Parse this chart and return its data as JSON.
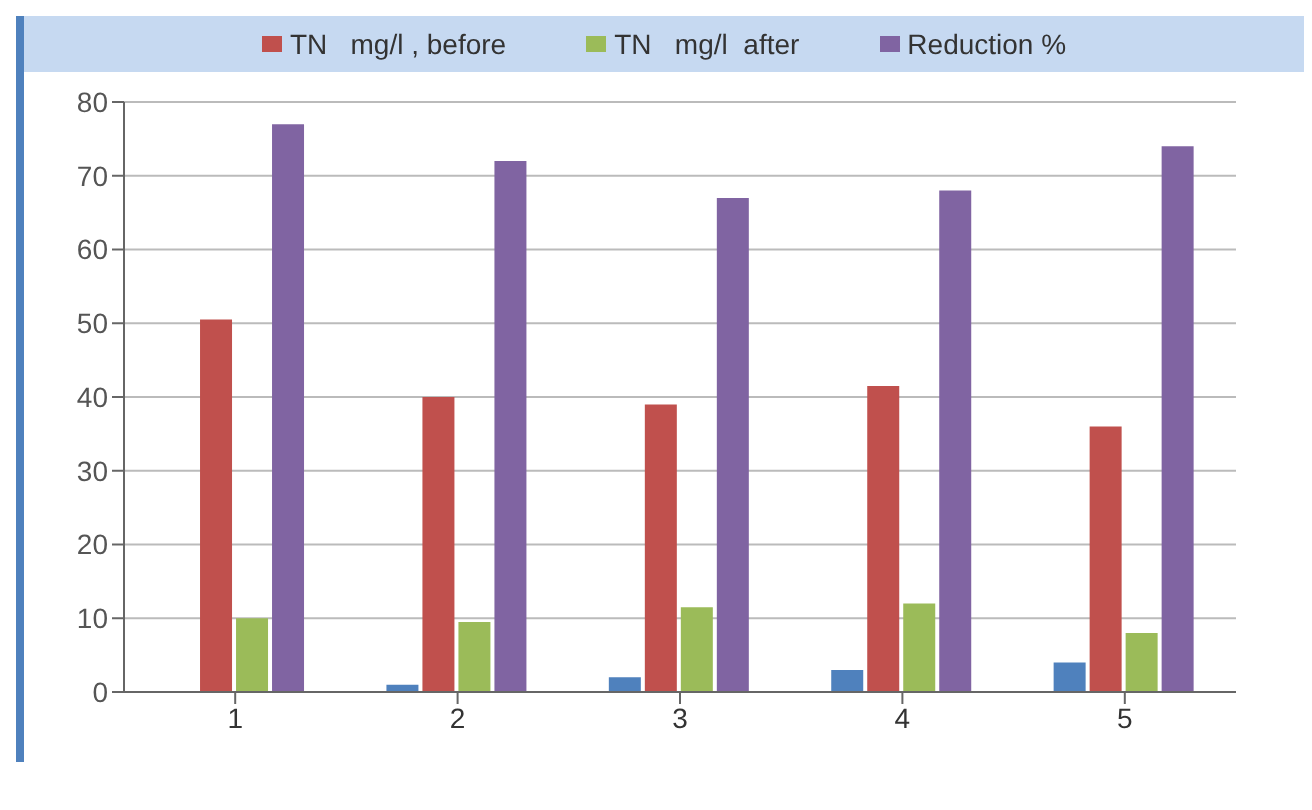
{
  "chart_data": {
    "type": "bar",
    "categories": [
      "1",
      "2",
      "3",
      "4",
      "5"
    ],
    "series": [
      {
        "color": "#4f81bd",
        "values": [
          0,
          1,
          2,
          3,
          4
        ]
      },
      {
        "name": "TN   mg/l , before",
        "color": "#c0504d",
        "values": [
          50.5,
          40,
          39,
          41.5,
          36
        ]
      },
      {
        "name": "TN   mg/l  after",
        "color": "#9bbb59",
        "values": [
          10,
          9.5,
          11.5,
          12,
          8
        ]
      },
      {
        "name": "Reduction %",
        "color": "#8064a2",
        "values": [
          77,
          72,
          67,
          68,
          74
        ]
      }
    ],
    "ylim": [
      0,
      80
    ],
    "yticks": [
      0,
      10,
      20,
      30,
      40,
      50,
      60,
      70,
      80
    ],
    "grid": "y",
    "legend": "top"
  }
}
